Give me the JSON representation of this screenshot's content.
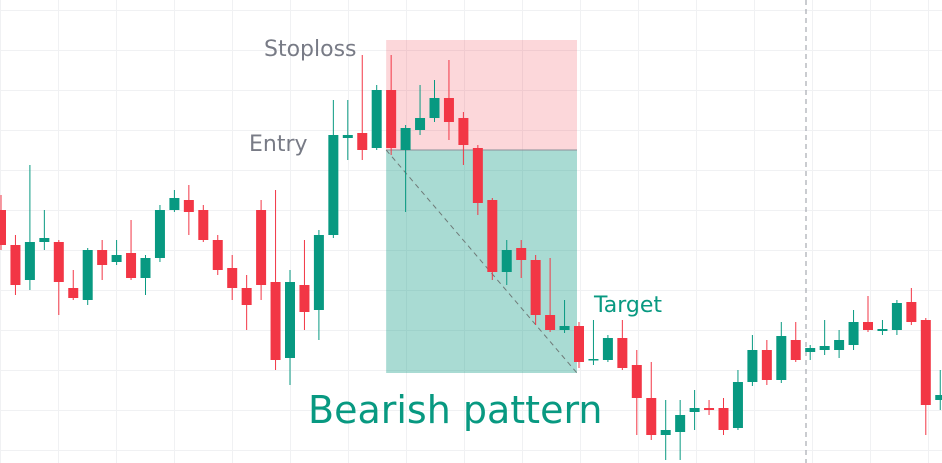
{
  "chart_data": {
    "type": "candlestick",
    "up_color": "#089981",
    "down_color": "#f23645",
    "ylim": [
      0,
      463
    ],
    "open": [
      253,
      218,
      183,
      221,
      221,
      175,
      163,
      213,
      201,
      210,
      185,
      205,
      253,
      263,
      253,
      223,
      195,
      175,
      253,
      181,
      105,
      178,
      153,
      228,
      325,
      330,
      315,
      373,
      313,
      333,
      345,
      365,
      345,
      315,
      263,
      191,
      215,
      203,
      148,
      133,
      137,
      103,
      103,
      125,
      98,
      65,
      28,
      31,
      51,
      55,
      55,
      35,
      81,
      113,
      83,
      123,
      111,
      113,
      113,
      118,
      141,
      132,
      133,
      161,
      143,
      63
    ],
    "high": [
      268,
      228,
      298,
      253,
      223,
      193,
      215,
      223,
      223,
      243,
      208,
      258,
      273,
      278,
      258,
      228,
      208,
      188,
      263,
      273,
      193,
      223,
      233,
      363,
      363,
      408,
      378,
      408,
      338,
      378,
      383,
      403,
      351,
      318,
      265,
      223,
      223,
      208,
      205,
      163,
      141,
      143,
      128,
      143,
      113,
      101,
      63,
      63,
      73,
      63,
      65,
      93,
      128,
      123,
      141,
      141,
      118,
      143,
      133,
      153,
      167,
      143,
      163,
      175,
      145,
      93
    ],
    "low": [
      213,
      168,
      173,
      213,
      148,
      163,
      158,
      183,
      198,
      183,
      168,
      201,
      251,
      228,
      221,
      188,
      163,
      133,
      163,
      93,
      78,
      133,
      123,
      225,
      303,
      303,
      313,
      308,
      251,
      328,
      341,
      323,
      298,
      248,
      183,
      178,
      185,
      138,
      131,
      130,
      95,
      98,
      101,
      93,
      28,
      23,
      3,
      3,
      33,
      48,
      28,
      33,
      77,
      78,
      80,
      101,
      103,
      108,
      105,
      113,
      131,
      128,
      128,
      138,
      28,
      53
    ],
    "close": [
      218,
      178,
      221,
      225,
      181,
      165,
      213,
      198,
      208,
      185,
      205,
      253,
      265,
      251,
      223,
      193,
      175,
      158,
      178,
      103,
      181,
      151,
      228,
      328,
      328,
      313,
      373,
      315,
      335,
      345,
      365,
      341,
      318,
      260,
      191,
      213,
      203,
      148,
      133,
      137,
      101,
      104,
      125,
      95,
      65,
      28,
      33,
      48,
      55,
      53,
      33,
      81,
      113,
      83,
      127,
      103,
      115,
      117,
      123,
      141,
      133,
      134,
      160,
      141,
      58,
      68
    ],
    "setup": {
      "from": 27,
      "to": 40,
      "stoploss": 423,
      "entry": 313,
      "target": 90
    },
    "annotations": {
      "stoploss": "Stoploss",
      "entry": "Entry",
      "target": "Target",
      "pattern": "Bearish pattern"
    }
  }
}
